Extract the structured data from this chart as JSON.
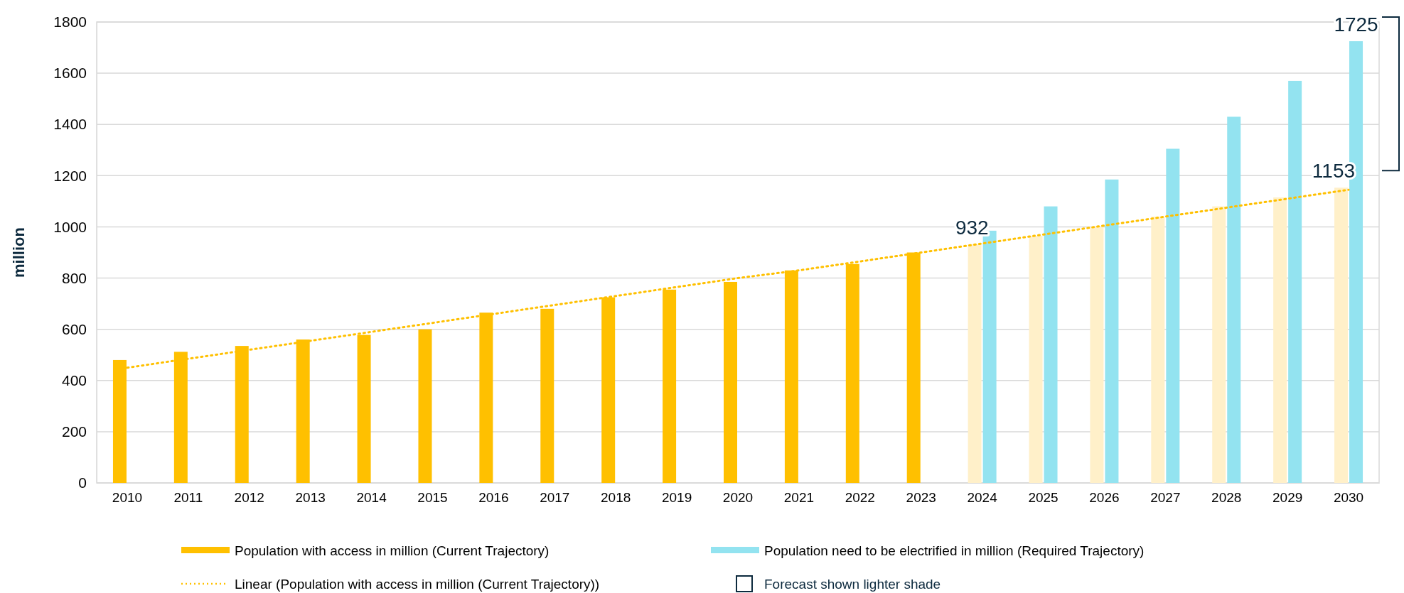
{
  "chart_data": {
    "type": "bar",
    "ylabel": "million",
    "categories": [
      "2010",
      "2011",
      "2012",
      "2013",
      "2014",
      "2015",
      "2016",
      "2017",
      "2018",
      "2019",
      "2020",
      "2021",
      "2022",
      "2023",
      "2024",
      "2025",
      "2026",
      "2027",
      "2028",
      "2029",
      "2030"
    ],
    "series": [
      {
        "name": "Population with access in million (Current Trajectory)",
        "color": "#ffc000",
        "colors": [
          "#ffc000",
          "#ffc000",
          "#ffc000",
          "#ffc000",
          "#ffc000",
          "#ffc000",
          "#ffc000",
          "#ffc000",
          "#ffc000",
          "#ffc000",
          "#ffc000",
          "#ffc000",
          "#ffc000",
          "#ffc000",
          "#fff0c9",
          "#fff0c9",
          "#fff0c9",
          "#fff0c9",
          "#fff0c9",
          "#fff0c9",
          "#fff0c9"
        ],
        "values": [
          480,
          512,
          535,
          560,
          578,
          600,
          665,
          680,
          725,
          755,
          785,
          830,
          855,
          900,
          932,
          965,
          1000,
          1040,
          1080,
          1115,
          1153
        ],
        "value_labels": [
          null,
          null,
          null,
          null,
          null,
          null,
          null,
          null,
          null,
          null,
          null,
          null,
          null,
          null,
          "932",
          null,
          null,
          null,
          null,
          null,
          "1153"
        ]
      },
      {
        "name": "Population need to be electrified in million (Required Trajectory)",
        "color": "#93e3f0",
        "colors": [
          null,
          null,
          null,
          null,
          null,
          null,
          null,
          null,
          null,
          null,
          null,
          null,
          null,
          null,
          "#93e3f0",
          "#93e3f0",
          "#93e3f0",
          "#93e3f0",
          "#93e3f0",
          "#93e3f0",
          "#93e3f0"
        ],
        "values": [
          null,
          null,
          null,
          null,
          null,
          null,
          null,
          null,
          null,
          null,
          null,
          null,
          null,
          null,
          985,
          1080,
          1185,
          1305,
          1430,
          1570,
          1725
        ],
        "value_labels": [
          null,
          null,
          null,
          null,
          null,
          null,
          null,
          null,
          null,
          null,
          null,
          null,
          null,
          null,
          null,
          null,
          null,
          null,
          null,
          null,
          "1725"
        ]
      },
      {
        "name": "Linear (Population with access in million (Current Trajectory))",
        "type": "line",
        "line_style": "dotted",
        "color": "#ffc000",
        "values": [
          450,
          485,
          520,
          555,
          590,
          625,
          660,
          695,
          730,
          765,
          800,
          830,
          865,
          900,
          935,
          970,
          1005,
          1040,
          1075,
          1110,
          1145
        ]
      }
    ],
    "ylim": [
      0,
      1800
    ],
    "yticks": [
      0,
      200,
      400,
      600,
      800,
      1000,
      1200,
      1400,
      1600,
      1800
    ],
    "grid": "y",
    "legend": "bottom",
    "annotations": [
      "Forecast shown lighter shade"
    ]
  }
}
